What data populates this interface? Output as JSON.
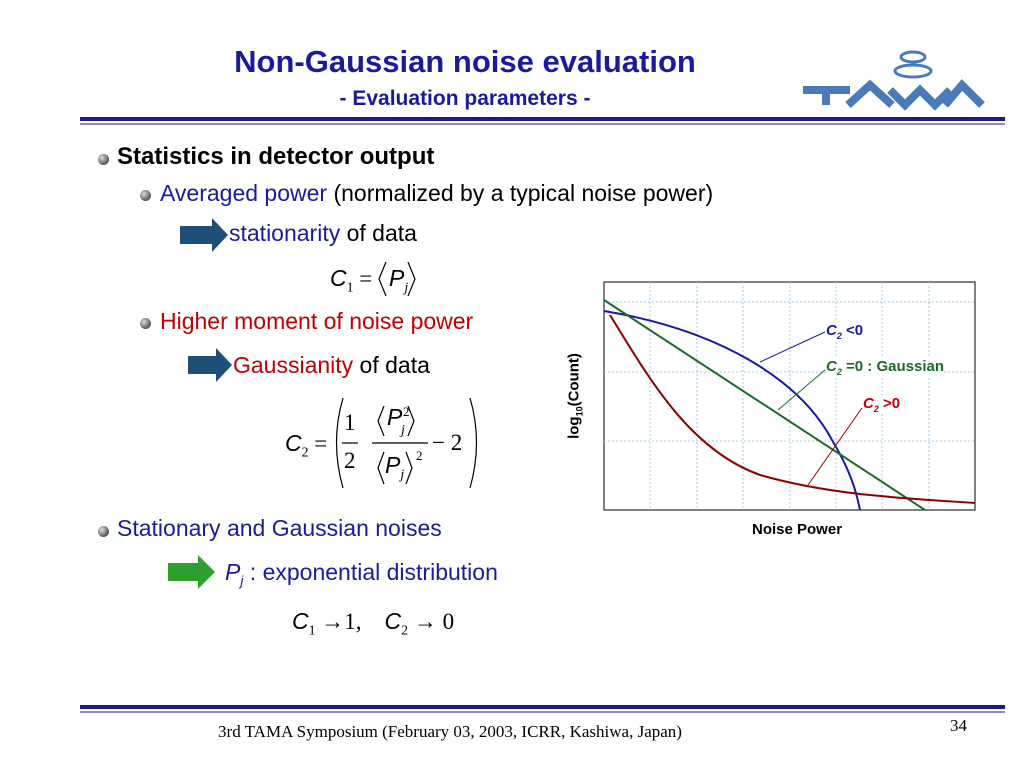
{
  "header": {
    "title": "Non-Gaussian noise evaluation",
    "subtitle": "- Evaluation parameters -"
  },
  "items": {
    "statistics": "Statistics in detector output",
    "averaged": {
      "highlight": "Averaged power",
      "rest": " (normalized by a typical noise power)"
    },
    "stationarity": {
      "highlight": "stationarity",
      "rest": " of data"
    },
    "higher": "Higher moment of noise power",
    "gaussianity": {
      "highlight": "Gaussianity",
      "rest": " of data"
    },
    "stationary": "Stationary and Gaussian noises",
    "pj": {
      "symbol": "P",
      "sub": "j",
      "rest": " : exponential distribution"
    }
  },
  "formulas": {
    "c1": {
      "c": "C",
      "sub": "1",
      "eq": "=",
      "p": "P",
      "psub": "j"
    },
    "c2": {
      "c": "C",
      "sub": "2",
      "eq": "=",
      "num": "1",
      "den": "2",
      "p": "P",
      "psup": "2",
      "psub": "j",
      "dsup": "2",
      "minus": "− 2"
    },
    "limits": {
      "c1": "C",
      "s1": "1",
      "arrow1": "→",
      "v1": "1,",
      "c2": "C",
      "s2": "2",
      "arrow2": "→",
      "v2": "0"
    }
  },
  "chart": {
    "ylabel": "log",
    "ysub": "10",
    "yrest": "(Count)",
    "xlabel": "Noise Power",
    "labels": [
      {
        "c": "C",
        "sub": "2",
        "rest": " <0"
      },
      {
        "c": "C",
        "sub": "2",
        "rest": " =0 : Gaussian"
      },
      {
        "c": "C",
        "sub": "2",
        "rest": " >0"
      }
    ]
  },
  "footer": {
    "text": "3rd TAMA Symposium (February 03, 2003, ICRR, Kashiwa, Japan)",
    "page": "34"
  }
}
